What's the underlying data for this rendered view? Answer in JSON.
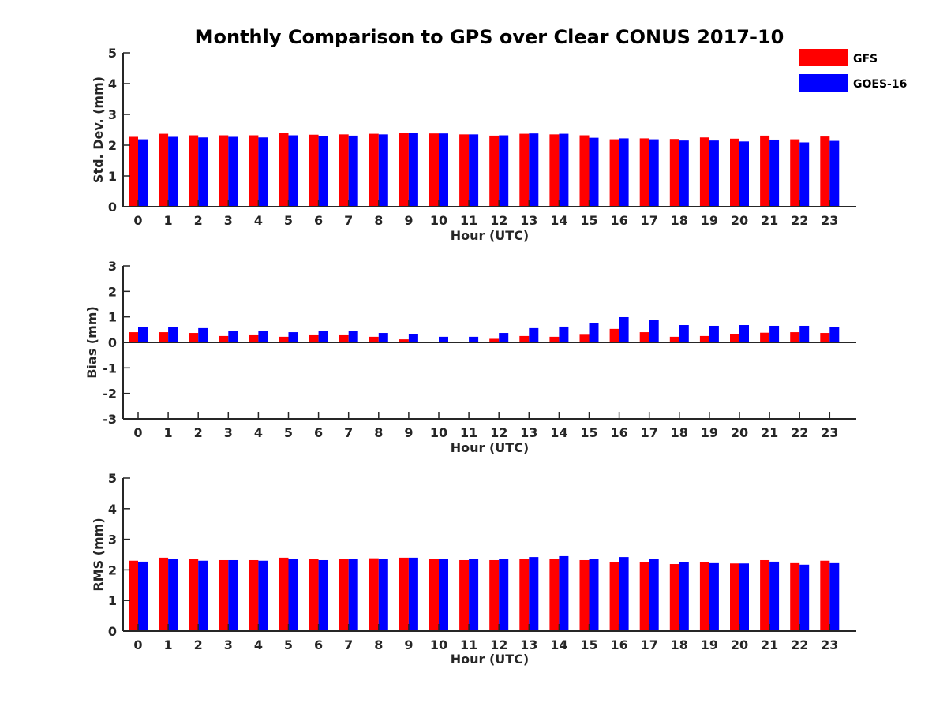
{
  "title": "Monthly Comparison to GPS over Clear CONUS 2017-10",
  "legend": {
    "placement": "top-right",
    "entries": [
      {
        "label": "GFS",
        "color": "#ff0000"
      },
      {
        "label": "GOES-16",
        "color": "#0000ff"
      }
    ]
  },
  "chart_data": [
    {
      "type": "bar",
      "xlabel": "Hour (UTC)",
      "ylabel": "Std. Dev. (mm)",
      "ylim": [
        0,
        5
      ],
      "yticks": [
        "0",
        "1",
        "2",
        "3",
        "4",
        "5"
      ],
      "categories": [
        "0",
        "1",
        "2",
        "3",
        "4",
        "5",
        "6",
        "7",
        "8",
        "9",
        "10",
        "11",
        "12",
        "13",
        "14",
        "15",
        "16",
        "17",
        "18",
        "19",
        "20",
        "21",
        "22",
        "23"
      ],
      "series": [
        {
          "name": "GFS",
          "color": "#ff0000",
          "values": [
            2.27,
            2.37,
            2.32,
            2.32,
            2.32,
            2.39,
            2.34,
            2.35,
            2.37,
            2.39,
            2.38,
            2.35,
            2.31,
            2.37,
            2.35,
            2.32,
            2.19,
            2.22,
            2.2,
            2.25,
            2.21,
            2.31,
            2.19,
            2.28
          ]
        },
        {
          "name": "GOES-16",
          "color": "#0000ff",
          "values": [
            2.19,
            2.27,
            2.25,
            2.27,
            2.25,
            2.32,
            2.29,
            2.31,
            2.35,
            2.39,
            2.38,
            2.35,
            2.32,
            2.38,
            2.37,
            2.24,
            2.22,
            2.19,
            2.15,
            2.15,
            2.12,
            2.18,
            2.09,
            2.14
          ]
        }
      ]
    },
    {
      "type": "bar",
      "xlabel": "Hour (UTC)",
      "ylabel": "Bias (mm)",
      "ylim": [
        -3,
        3
      ],
      "yticks": [
        "-3",
        "-2",
        "-1",
        "0",
        "1",
        "2",
        "3"
      ],
      "categories": [
        "0",
        "1",
        "2",
        "3",
        "4",
        "5",
        "6",
        "7",
        "8",
        "9",
        "10",
        "11",
        "12",
        "13",
        "14",
        "15",
        "16",
        "17",
        "18",
        "19",
        "20",
        "21",
        "22",
        "23"
      ],
      "series": [
        {
          "name": "GFS",
          "color": "#ff0000",
          "values": [
            0.4,
            0.4,
            0.37,
            0.25,
            0.28,
            0.22,
            0.28,
            0.28,
            0.22,
            0.12,
            0.03,
            0.03,
            0.14,
            0.25,
            0.22,
            0.3,
            0.53,
            0.4,
            0.22,
            0.25,
            0.33,
            0.38,
            0.4,
            0.37
          ]
        },
        {
          "name": "GOES-16",
          "color": "#0000ff",
          "values": [
            0.6,
            0.59,
            0.56,
            0.44,
            0.46,
            0.4,
            0.44,
            0.44,
            0.37,
            0.31,
            0.22,
            0.22,
            0.37,
            0.56,
            0.62,
            0.75,
            0.99,
            0.87,
            0.68,
            0.65,
            0.68,
            0.65,
            0.65,
            0.59
          ]
        }
      ]
    },
    {
      "type": "bar",
      "xlabel": "Hour (UTC)",
      "ylabel": "RMS (mm)",
      "ylim": [
        0,
        5
      ],
      "yticks": [
        "0",
        "1",
        "2",
        "3",
        "4",
        "5"
      ],
      "categories": [
        "0",
        "1",
        "2",
        "3",
        "4",
        "5",
        "6",
        "7",
        "8",
        "9",
        "10",
        "11",
        "12",
        "13",
        "14",
        "15",
        "16",
        "17",
        "18",
        "19",
        "20",
        "21",
        "22",
        "23"
      ],
      "series": [
        {
          "name": "GFS",
          "color": "#ff0000",
          "values": [
            2.3,
            2.4,
            2.35,
            2.32,
            2.32,
            2.4,
            2.35,
            2.35,
            2.38,
            2.4,
            2.35,
            2.32,
            2.32,
            2.37,
            2.35,
            2.32,
            2.25,
            2.25,
            2.19,
            2.25,
            2.21,
            2.32,
            2.22,
            2.3
          ]
        },
        {
          "name": "GOES-16",
          "color": "#0000ff",
          "values": [
            2.27,
            2.35,
            2.3,
            2.32,
            2.3,
            2.35,
            2.32,
            2.35,
            2.35,
            2.4,
            2.37,
            2.35,
            2.35,
            2.42,
            2.45,
            2.35,
            2.42,
            2.35,
            2.25,
            2.22,
            2.21,
            2.27,
            2.17,
            2.22
          ]
        }
      ]
    }
  ]
}
